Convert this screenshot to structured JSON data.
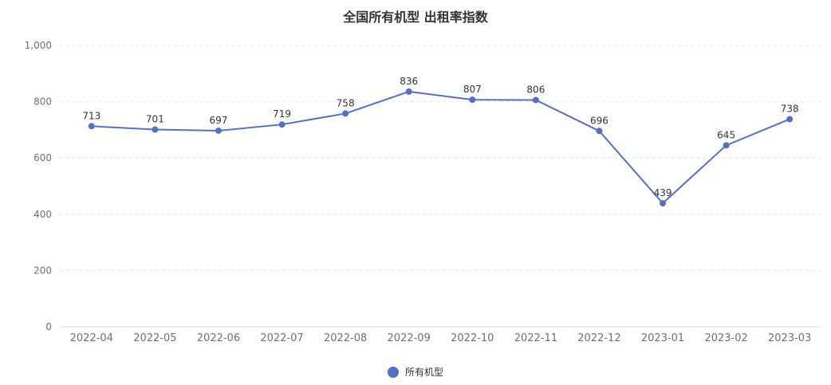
{
  "chart_data": {
    "type": "line",
    "title": "全国所有机型 出租率指数",
    "categories": [
      "2022-04",
      "2022-05",
      "2022-06",
      "2022-07",
      "2022-08",
      "2022-09",
      "2022-10",
      "2022-11",
      "2022-12",
      "2023-01",
      "2023-02",
      "2023-03"
    ],
    "series": [
      {
        "name": "所有机型",
        "values": [
          713,
          701,
          697,
          719,
          758,
          836,
          807,
          806,
          696,
          439,
          645,
          738
        ],
        "data_labels": [
          "713",
          "701",
          "697",
          "719",
          "758",
          "836",
          "807",
          "806",
          "696",
          "439",
          "645",
          "738"
        ]
      }
    ],
    "yticks": [
      0,
      200,
      400,
      600,
      800,
      1000
    ],
    "ytick_labels": [
      "0",
      "200",
      "400",
      "600",
      "800",
      "1,000"
    ],
    "ylim": [
      0,
      1000
    ],
    "grid": true,
    "legend_position": "bottom-center",
    "colors": {
      "line": "#5470c6",
      "grid": "#e6e6e6",
      "axis_text": "#6e7079",
      "label_text": "#333333"
    }
  }
}
